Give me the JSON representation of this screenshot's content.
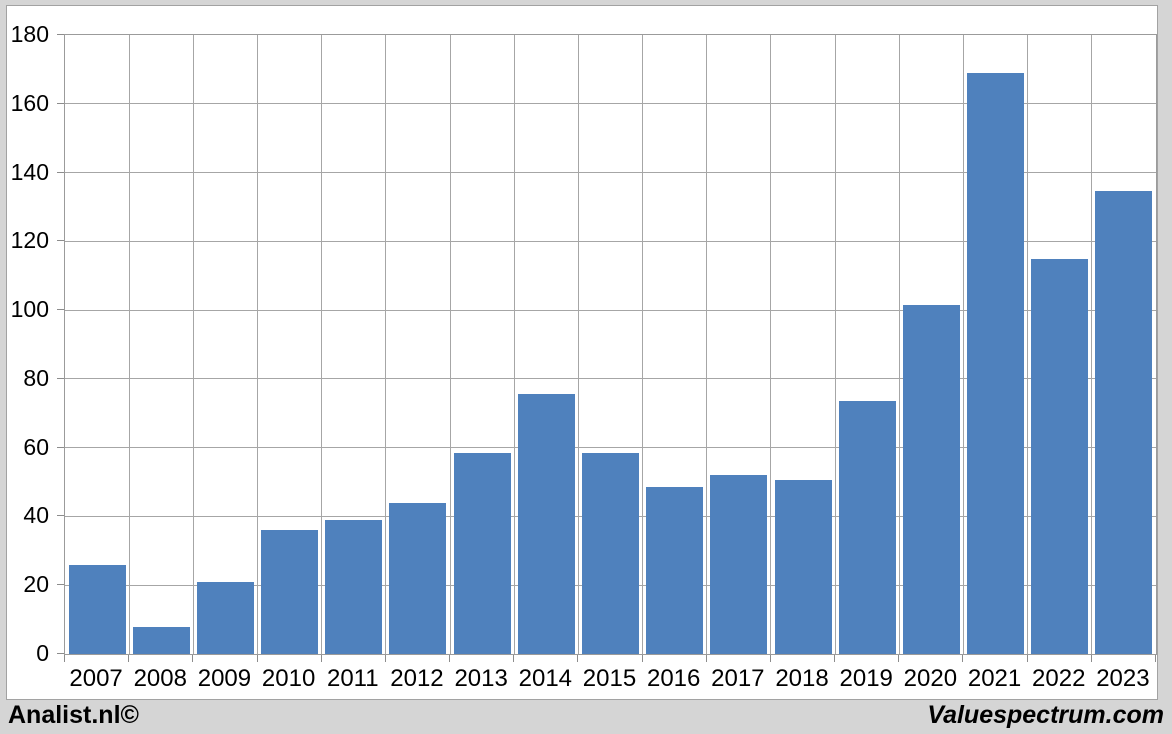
{
  "branding": {
    "left_text": "Analist.nl©",
    "right_text": "Valuespectrum.com"
  },
  "chart_data": {
    "type": "bar",
    "title": "",
    "xlabel": "",
    "ylabel": "",
    "categories": [
      "2007",
      "2008",
      "2009",
      "2010",
      "2011",
      "2012",
      "2013",
      "2014",
      "2015",
      "2016",
      "2017",
      "2018",
      "2019",
      "2020",
      "2021",
      "2022",
      "2023"
    ],
    "values": [
      26,
      8,
      21,
      36,
      39,
      44,
      58.5,
      75.5,
      58.5,
      48.5,
      52,
      50.5,
      73.5,
      101.5,
      169,
      115,
      134.5
    ],
    "ylim": [
      0,
      180
    ],
    "ytick_step": 20,
    "grid": true,
    "legend": "none",
    "colors": {
      "bar": "#4f81bd",
      "gridline": "#a6a6a6",
      "plot_border": "#9b9b9b",
      "tick": "#8c8c8c",
      "axis_text": "#000000",
      "panel_bg": "#ffffff",
      "frame_bg": "#d5d5d5"
    }
  }
}
